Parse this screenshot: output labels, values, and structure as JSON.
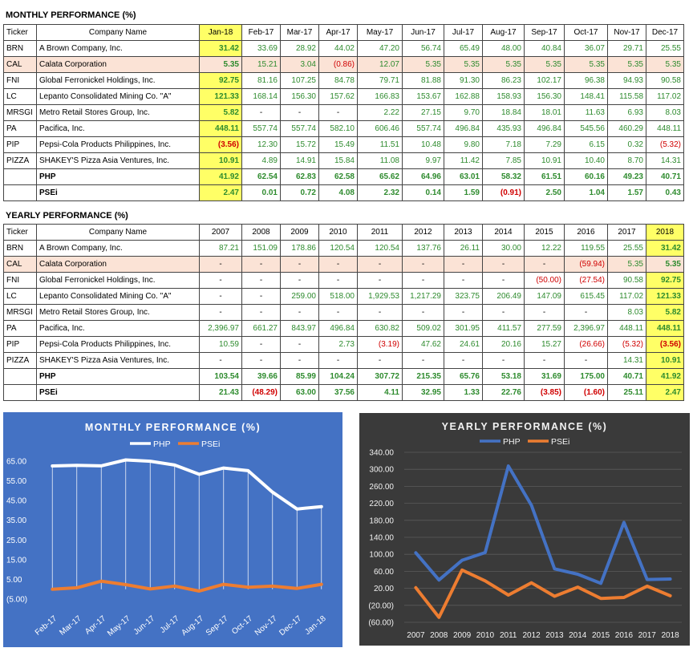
{
  "monthly": {
    "title": "MONTHLY PERFORMANCE (%)",
    "headers": [
      "Ticker",
      "Company Name",
      "Jan-18",
      "Feb-17",
      "Mar-17",
      "Apr-17",
      "May-17",
      "Jun-17",
      "Jul-17",
      "Aug-17",
      "Sep-17",
      "Oct-17",
      "Nov-17",
      "Dec-17"
    ],
    "rows": [
      {
        "ticker": "BRN",
        "name": "A Brown Company, Inc.",
        "values": [
          "31.42",
          "33.69",
          "28.92",
          "44.02",
          "47.20",
          "56.74",
          "65.49",
          "48.00",
          "40.84",
          "36.07",
          "29.71",
          "25.55"
        ]
      },
      {
        "ticker": "CAL",
        "name": "Calata Corporation",
        "values": [
          "5.35",
          "15.21",
          "3.04",
          "(0.86)",
          "12.07",
          "5.35",
          "5.35",
          "5.35",
          "5.35",
          "5.35",
          "5.35",
          "5.35"
        ]
      },
      {
        "ticker": "FNI",
        "name": "Global Ferronickel Holdings, Inc.",
        "values": [
          "92.75",
          "81.16",
          "107.25",
          "84.78",
          "79.71",
          "81.88",
          "91.30",
          "86.23",
          "102.17",
          "96.38",
          "94.93",
          "90.58"
        ]
      },
      {
        "ticker": "LC",
        "name": "Lepanto Consolidated Mining Co. \"A\"",
        "values": [
          "121.33",
          "168.14",
          "156.30",
          "157.62",
          "166.83",
          "153.67",
          "162.88",
          "158.93",
          "156.30",
          "148.41",
          "115.58",
          "117.02"
        ]
      },
      {
        "ticker": "MRSGI",
        "name": "Metro Retail Stores Group, Inc.",
        "values": [
          "5.82",
          "-",
          "-",
          "-",
          "2.22",
          "27.15",
          "9.70",
          "18.84",
          "18.01",
          "11.63",
          "6.93",
          "8.03"
        ]
      },
      {
        "ticker": "PA",
        "name": "Pacifica, Inc.",
        "values": [
          "448.11",
          "557.74",
          "557.74",
          "582.10",
          "606.46",
          "557.74",
          "496.84",
          "435.93",
          "496.84",
          "545.56",
          "460.29",
          "448.11"
        ]
      },
      {
        "ticker": "PIP",
        "name": "Pepsi-Cola Products Philippines, Inc.",
        "values": [
          "(3.56)",
          "12.30",
          "15.72",
          "15.49",
          "11.51",
          "10.48",
          "9.80",
          "7.18",
          "7.29",
          "6.15",
          "0.32",
          "(5.32)"
        ]
      },
      {
        "ticker": "PIZZA",
        "name": "SHAKEY'S Pizza Asia Ventures, Inc.",
        "values": [
          "10.91",
          "4.89",
          "14.91",
          "15.84",
          "11.08",
          "9.97",
          "11.42",
          "7.85",
          "10.91",
          "10.40",
          "8.70",
          "14.31"
        ]
      }
    ],
    "summary": [
      {
        "name": "PHP",
        "values": [
          "41.92",
          "62.54",
          "62.83",
          "62.58",
          "65.62",
          "64.96",
          "63.01",
          "58.32",
          "61.51",
          "60.16",
          "49.23",
          "40.71"
        ]
      },
      {
        "name": "PSEi",
        "values": [
          "2.47",
          "0.01",
          "0.72",
          "4.08",
          "2.32",
          "0.14",
          "1.59",
          "(0.91)",
          "2.50",
          "1.04",
          "1.57",
          "0.43"
        ]
      }
    ]
  },
  "yearly": {
    "title": "YEARLY PERFORMANCE (%)",
    "headers": [
      "Ticker",
      "Company Name",
      "2007",
      "2008",
      "2009",
      "2010",
      "2011",
      "2012",
      "2013",
      "2014",
      "2015",
      "2016",
      "2017",
      "2018"
    ],
    "rows": [
      {
        "ticker": "BRN",
        "name": "A Brown Company, Inc.",
        "values": [
          "87.21",
          "151.09",
          "178.86",
          "120.54",
          "120.54",
          "137.76",
          "26.11",
          "30.00",
          "12.22",
          "119.55",
          "25.55",
          "31.42"
        ]
      },
      {
        "ticker": "CAL",
        "name": "Calata Corporation",
        "values": [
          "-",
          "-",
          "-",
          "-",
          "-",
          "-",
          "-",
          "-",
          "-",
          "(59.94)",
          "5.35",
          "5.35"
        ]
      },
      {
        "ticker": "FNI",
        "name": "Global Ferronickel Holdings, Inc.",
        "values": [
          "-",
          "-",
          "-",
          "-",
          "-",
          "-",
          "-",
          "-",
          "(50.00)",
          "(27.54)",
          "90.58",
          "92.75"
        ]
      },
      {
        "ticker": "LC",
        "name": "Lepanto Consolidated Mining Co. \"A\"",
        "values": [
          "-",
          "-",
          "259.00",
          "518.00",
          "1,929.53",
          "1,217.29",
          "323.75",
          "206.49",
          "147.09",
          "615.45",
          "117.02",
          "121.33"
        ]
      },
      {
        "ticker": "MRSGI",
        "name": "Metro Retail Stores Group, Inc.",
        "values": [
          "-",
          "-",
          "-",
          "-",
          "-",
          "-",
          "-",
          "-",
          "-",
          "-",
          "8.03",
          "5.82"
        ]
      },
      {
        "ticker": "PA",
        "name": "Pacifica, Inc.",
        "values": [
          "2,396.97",
          "661.27",
          "843.97",
          "496.84",
          "630.82",
          "509.02",
          "301.95",
          "411.57",
          "277.59",
          "2,396.97",
          "448.11",
          "448.11"
        ]
      },
      {
        "ticker": "PIP",
        "name": "Pepsi-Cola Products Philippines, Inc.",
        "values": [
          "10.59",
          "-",
          "-",
          "2.73",
          "(3.19)",
          "47.62",
          "24.61",
          "20.16",
          "15.27",
          "(26.66)",
          "(5.32)",
          "(3.56)"
        ]
      },
      {
        "ticker": "PIZZA",
        "name": "SHAKEY'S Pizza Asia Ventures, Inc.",
        "values": [
          "-",
          "-",
          "-",
          "-",
          "-",
          "-",
          "-",
          "-",
          "-",
          "-",
          "14.31",
          "10.91"
        ]
      }
    ],
    "summary": [
      {
        "name": "PHP",
        "values": [
          "103.54",
          "39.66",
          "85.99",
          "104.24",
          "307.72",
          "215.35",
          "65.76",
          "53.18",
          "31.69",
          "175.00",
          "40.71",
          "41.92"
        ]
      },
      {
        "name": "PSEi",
        "values": [
          "21.43",
          "(48.29)",
          "63.00",
          "37.56",
          "4.11",
          "32.95",
          "1.33",
          "22.76",
          "(3.85)",
          "(1.60)",
          "25.11",
          "2.47"
        ]
      }
    ]
  },
  "chart_data": [
    {
      "type": "line",
      "title": "MONTHLY PERFORMANCE (%)",
      "categories": [
        "Feb-17",
        "Mar-17",
        "Apr-17",
        "May-17",
        "Jun-17",
        "Jul-17",
        "Aug-17",
        "Sep-17",
        "Oct-17",
        "Nov-17",
        "Dec-17",
        "Jan-18"
      ],
      "series": [
        {
          "name": "PHP",
          "values": [
            62.54,
            62.83,
            62.58,
            65.62,
            64.96,
            63.01,
            58.32,
            61.51,
            60.16,
            49.23,
            40.71,
            41.92
          ],
          "color": "#ffffff"
        },
        {
          "name": "PSEi",
          "values": [
            0.01,
            0.72,
            4.08,
            2.32,
            0.14,
            1.59,
            -0.91,
            2.5,
            1.04,
            1.57,
            0.43,
            2.47
          ],
          "color": "#ed7d31"
        }
      ],
      "ylim": [
        -5,
        65
      ],
      "yticks": [
        "65.00",
        "55.00",
        "45.00",
        "35.00",
        "25.00",
        "15.00",
        "5.00",
        "(5.00)"
      ],
      "yticks_values": [
        65,
        55,
        45,
        35,
        25,
        15,
        5,
        -5
      ],
      "grid": "vertical",
      "legend": "top",
      "background": "#4472c4"
    },
    {
      "type": "line",
      "title": "YEARLY PERFORMANCE (%)",
      "categories": [
        "2007",
        "2008",
        "2009",
        "2010",
        "2011",
        "2012",
        "2013",
        "2014",
        "2015",
        "2016",
        "2017",
        "2018"
      ],
      "series": [
        {
          "name": "PHP",
          "values": [
            103.54,
            39.66,
            85.99,
            104.24,
            307.72,
            215.35,
            65.76,
            53.18,
            31.69,
            175.0,
            40.71,
            41.92
          ],
          "color": "#4472c4"
        },
        {
          "name": "PSEi",
          "values": [
            21.43,
            -48.29,
            63.0,
            37.56,
            4.11,
            32.95,
            1.33,
            22.76,
            -3.85,
            -1.6,
            25.11,
            2.47
          ],
          "color": "#ed7d31"
        }
      ],
      "ylim": [
        -60,
        340
      ],
      "yticks": [
        "340.00",
        "300.00",
        "260.00",
        "220.00",
        "180.00",
        "140.00",
        "100.00",
        "60.00",
        "20.00",
        "(20.00)",
        "(60.00)"
      ],
      "yticks_values": [
        340,
        300,
        260,
        220,
        180,
        140,
        100,
        60,
        20,
        -20,
        -60
      ],
      "grid": "horizontal",
      "legend": "top",
      "background": "#3a3a3a"
    }
  ]
}
